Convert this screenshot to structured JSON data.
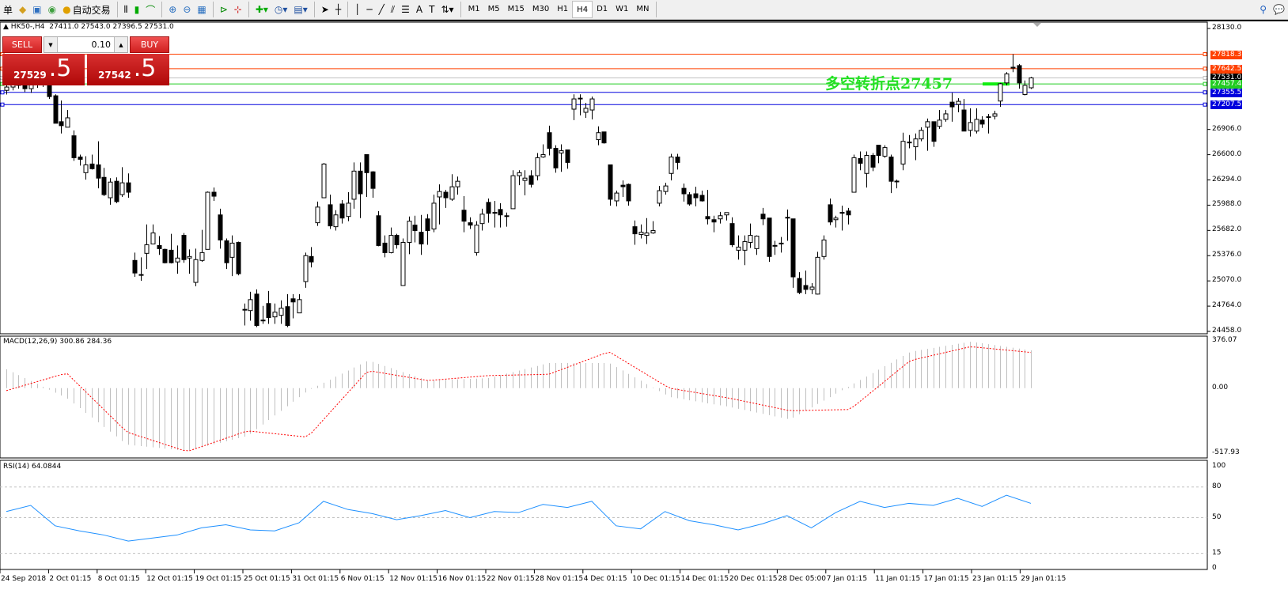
{
  "toolbar": {
    "menu_tail": "单",
    "autotrade": "自动交易",
    "timeframes": [
      "M1",
      "M5",
      "M15",
      "M30",
      "H1",
      "H4",
      "D1",
      "W1",
      "MN"
    ],
    "active_timeframe": "H4"
  },
  "header": {
    "symbol": "HK50-,H4",
    "open": "27411.0",
    "high": "27543.0",
    "low": "27396.5",
    "close": "27531.0"
  },
  "trade_panel": {
    "sell_label": "SELL",
    "buy_label": "BUY",
    "lot": "0.10",
    "sell_big": "27529",
    "sell_small": ".5",
    "buy_big": "27542",
    "buy_small": ".5"
  },
  "annotation": {
    "text": "多空转折点27457",
    "color": "#22e022"
  },
  "price_lines": [
    {
      "price": 27818.3,
      "label": "27818.3",
      "color": "#ff4000"
    },
    {
      "price": 27642.5,
      "label": "27642.5",
      "color": "#ff4000"
    },
    {
      "price": 27531.0,
      "label": "27531.0",
      "color": "#c0c0c0",
      "tag_color": "#000000"
    },
    {
      "price": 27457.4,
      "label": "27457.4",
      "color": "#22cc22"
    },
    {
      "price": 27355.5,
      "label": "27355.5",
      "color": "#0000dd"
    },
    {
      "price": 27207.5,
      "label": "27207.5",
      "color": "#0000dd"
    }
  ],
  "chart_data": [
    {
      "type": "candlestick",
      "title": "HK50-,H4",
      "ylim": [
        24458.0,
        28130.0
      ],
      "yticks": [
        "28130.0",
        "26906.0",
        "26600.0",
        "26294.0",
        "25988.0",
        "25682.0",
        "25376.0",
        "25070.0",
        "24764.0",
        "24458.0"
      ],
      "xticks": [
        "24 Sep 2018",
        "2 Oct 01:15",
        "8 Oct 01:15",
        "12 Oct 01:15",
        "19 Oct 01:15",
        "25 Oct 01:15",
        "31 Oct 01:15",
        "6 Nov 01:15",
        "12 Nov 01:15",
        "16 Nov 01:15",
        "22 Nov 01:15",
        "28 Nov 01:15",
        "4 Dec 01:15",
        "10 Dec 01:15",
        "14 Dec 01:15",
        "20 Dec 01:15",
        "28 Dec 05:00",
        "7 Jan 01:15",
        "11 Jan 01:15",
        "17 Jan 01:15",
        "23 Jan 01:15",
        "29 Jan 01:15"
      ],
      "ohlc": [
        [
          27380,
          27450,
          27330,
          27420
        ],
        [
          27420,
          27500,
          27380,
          27470
        ],
        [
          27470,
          27520,
          27400,
          27440
        ],
        [
          27440,
          27490,
          27360,
          27400
        ],
        [
          27400,
          27480,
          27350,
          27450
        ],
        [
          27450,
          27530,
          27410,
          27480
        ],
        [
          27480,
          27500,
          27420,
          27446
        ],
        [
          27446,
          27465,
          27275,
          27304
        ],
        [
          27314,
          27332,
          26981,
          26981
        ],
        [
          27000,
          27256,
          26857,
          26952
        ],
        [
          26933,
          27142,
          26933,
          27047
        ],
        [
          26829,
          26895,
          26525,
          26563
        ],
        [
          26572,
          26601,
          26468,
          26544
        ],
        [
          26382,
          26582,
          26297,
          26477
        ],
        [
          26487,
          26601,
          26420,
          26430
        ],
        [
          26477,
          26762,
          26192,
          26316
        ],
        [
          26325,
          26440,
          26097,
          26116
        ],
        [
          26078,
          26316,
          25993,
          26268
        ],
        [
          26278,
          26325,
          26012,
          26031
        ],
        [
          26116,
          26449,
          26088,
          26259
        ],
        [
          26259,
          26373,
          26078,
          26145
        ],
        [
          25318,
          25413,
          25119,
          25166
        ],
        [
          25147,
          25356,
          25071,
          25138
        ],
        [
          25404,
          25755,
          25214,
          25508
        ],
        [
          25518,
          25755,
          25518,
          25651
        ],
        [
          25499,
          25613,
          25385,
          25461
        ],
        [
          25452,
          25461,
          25281,
          25290
        ],
        [
          25442,
          25641,
          25281,
          25290
        ],
        [
          25300,
          25499,
          25157,
          25347
        ],
        [
          25622,
          25651,
          25290,
          25328
        ],
        [
          25347,
          25452,
          25157,
          25366
        ],
        [
          25052,
          25461,
          25005,
          25328
        ],
        [
          25318,
          25689,
          25300,
          25413
        ],
        [
          25452,
          26154,
          25452,
          26145
        ],
        [
          26145,
          26202,
          26040,
          26097
        ],
        [
          25870,
          25945,
          25461,
          25566
        ],
        [
          25556,
          25584,
          25214,
          25290
        ],
        [
          25356,
          25622,
          25128,
          25528
        ],
        [
          25537,
          25546,
          25138,
          25157
        ],
        [
          24725,
          24796,
          24530,
          24720
        ],
        [
          24710,
          24938,
          24587,
          24843
        ],
        [
          24910,
          24967,
          24510,
          24530
        ],
        [
          24595,
          24767,
          24549,
          24590
        ],
        [
          24796,
          24948,
          24549,
          24625
        ],
        [
          24634,
          24796,
          24549,
          24691
        ],
        [
          24653,
          24834,
          24549,
          24739
        ],
        [
          24758,
          24910,
          24510,
          24530
        ],
        [
          24853,
          24910,
          24616,
          24815
        ],
        [
          24682,
          24910,
          24682,
          24843
        ],
        [
          25062,
          25413,
          24986,
          25376
        ],
        [
          25366,
          25480,
          25233,
          25300
        ],
        [
          25775,
          26031,
          25737,
          25965
        ],
        [
          26078,
          26500,
          26078,
          26487
        ],
        [
          25993,
          26116,
          25699,
          25737
        ],
        [
          25727,
          25927,
          25680,
          25870
        ],
        [
          26002,
          26050,
          25765,
          25832
        ],
        [
          25851,
          26145,
          25794,
          26012
        ],
        [
          26060,
          26506,
          25945,
          26401
        ],
        [
          26401,
          26506,
          25832,
          26126
        ],
        [
          26601,
          26601,
          26088,
          26382
        ],
        [
          26392,
          26401,
          26078,
          26192
        ],
        [
          25860,
          25917,
          25490,
          25499
        ],
        [
          25528,
          25622,
          25356,
          25413
        ],
        [
          25413,
          25717,
          25404,
          25622
        ],
        [
          25622,
          25641,
          25461,
          25508
        ],
        [
          25014,
          25584,
          25014,
          25537
        ],
        [
          25537,
          25851,
          25394,
          25794
        ],
        [
          25746,
          25860,
          25537,
          25680
        ],
        [
          25660,
          25870,
          25385,
          25518
        ],
        [
          25822,
          25879,
          25508,
          25680
        ],
        [
          25699,
          26116,
          25660,
          26012
        ],
        [
          26088,
          26240,
          25755,
          26154
        ],
        [
          26145,
          26173,
          25955,
          26078
        ],
        [
          26060,
          26363,
          26040,
          26211
        ],
        [
          26211,
          26335,
          26116,
          26278
        ],
        [
          25927,
          26097,
          25660,
          25794
        ],
        [
          25775,
          25841,
          25699,
          25746
        ],
        [
          25413,
          25794,
          25376,
          25746
        ],
        [
          25765,
          25945,
          25680,
          25879
        ],
        [
          26022,
          26069,
          25775,
          25889
        ],
        [
          25900,
          26040,
          25717,
          25898
        ],
        [
          25936,
          26012,
          25717,
          25870
        ],
        [
          25851,
          25898,
          25727,
          25860
        ],
        [
          25945,
          26411,
          25945,
          26345
        ],
        [
          26345,
          26411,
          26231,
          26382
        ],
        [
          26288,
          26411,
          26107,
          26316
        ],
        [
          26345,
          26411,
          26202,
          26240
        ],
        [
          26345,
          26620,
          26288,
          26563
        ],
        [
          26572,
          26725,
          26563,
          26601
        ],
        [
          26867,
          26952,
          26591,
          26677
        ],
        [
          26677,
          26715,
          26382,
          26440
        ],
        [
          26620,
          26725,
          26392,
          26648
        ],
        [
          26658,
          26658,
          26430,
          26506
        ],
        [
          27152,
          27332,
          27019,
          27276
        ],
        [
          27276,
          27332,
          27076,
          27285
        ],
        [
          27114,
          27228,
          27047,
          27162
        ],
        [
          27142,
          27304,
          27028,
          27276
        ],
        [
          26782,
          26943,
          26715,
          26867
        ],
        [
          26876,
          26876,
          26734,
          26743
        ],
        [
          26477,
          26477,
          25983,
          26060
        ],
        [
          26040,
          26164,
          25974,
          26135
        ],
        [
          26230,
          26288,
          26088,
          26212
        ],
        [
          26240,
          26250,
          25983,
          26040
        ],
        [
          25727,
          25803,
          25508,
          25641
        ],
        [
          25632,
          25755,
          25584,
          25660
        ],
        [
          25622,
          25832,
          25518,
          25651
        ],
        [
          25651,
          25794,
          25641,
          25680
        ],
        [
          26012,
          26221,
          25974,
          26164
        ],
        [
          26154,
          26259,
          26116,
          26221
        ],
        [
          26373,
          26610,
          26288,
          26572
        ],
        [
          26572,
          26610,
          26420,
          26506
        ],
        [
          26192,
          26250,
          26031,
          26126
        ],
        [
          26116,
          26145,
          25983,
          26002
        ],
        [
          26126,
          26211,
          25974,
          26078
        ],
        [
          26107,
          26164,
          26031,
          26040
        ],
        [
          25850,
          26173,
          25755,
          25822
        ],
        [
          25812,
          25860,
          25660,
          25784
        ],
        [
          25822,
          25907,
          25765,
          25860
        ],
        [
          25870,
          25898,
          25803,
          25898
        ],
        [
          25765,
          25841,
          25480,
          25508
        ],
        [
          25442,
          25622,
          25328,
          25480
        ],
        [
          25442,
          25622,
          25261,
          25546
        ],
        [
          25537,
          25765,
          25470,
          25622
        ],
        [
          25461,
          25622,
          25385,
          25613
        ],
        [
          25879,
          25955,
          25746,
          25822
        ],
        [
          25832,
          25832,
          25300,
          25366
        ],
        [
          25500,
          25556,
          25385,
          25499
        ],
        [
          25518,
          25603,
          25413,
          25528
        ],
        [
          25832,
          25936,
          25556,
          25841
        ],
        [
          25822,
          25822,
          24986,
          25119
        ],
        [
          25100,
          25176,
          24910,
          24929
        ],
        [
          25014,
          25195,
          24910,
          24967
        ],
        [
          24967,
          25043,
          24910,
          24995
        ],
        [
          24910,
          25423,
          24905,
          25356
        ],
        [
          25366,
          25622,
          25328,
          25566
        ],
        [
          25993,
          26069,
          25746,
          25784
        ],
        [
          25812,
          25860,
          25717,
          25832
        ],
        [
          25900,
          25983,
          25680,
          25898
        ],
        [
          25917,
          25955,
          25755,
          25870
        ],
        [
          26145,
          26601,
          26145,
          26563
        ],
        [
          26553,
          26639,
          26411,
          26496
        ],
        [
          26373,
          26639,
          26202,
          26591
        ],
        [
          26591,
          26620,
          26401,
          26449
        ],
        [
          26715,
          26715,
          26496,
          26591
        ],
        [
          26582,
          26715,
          26563,
          26686
        ],
        [
          26572,
          26601,
          26135,
          26278
        ],
        [
          26280,
          26297,
          26192,
          26278
        ],
        [
          26487,
          26867,
          26411,
          26762
        ],
        [
          26753,
          26838,
          26677,
          26743
        ],
        [
          26696,
          26857,
          26534,
          26791
        ],
        [
          26791,
          26933,
          26762,
          26895
        ],
        [
          26933,
          27038,
          26648,
          27000
        ],
        [
          27000,
          27000,
          26696,
          26762
        ],
        [
          26943,
          27142,
          26914,
          27019
        ],
        [
          27028,
          27142,
          27000,
          27095
        ],
        [
          27237,
          27351,
          27000,
          27180
        ],
        [
          27209,
          27285,
          27114,
          27247
        ],
        [
          27142,
          27275,
          26886,
          26886
        ],
        [
          26895,
          27162,
          26820,
          26990
        ],
        [
          26886,
          27162,
          26857,
          27028
        ],
        [
          27019,
          27066,
          26924,
          26971
        ],
        [
          27060,
          27095,
          26857,
          27057
        ],
        [
          27066,
          27133,
          27028,
          27095
        ],
        [
          27250,
          27470,
          27180,
          27460
        ],
        [
          27470,
          27600,
          27440,
          27580
        ],
        [
          27650,
          27818,
          27600,
          27660
        ],
        [
          27680,
          27700,
          27400,
          27470
        ],
        [
          27330,
          27500,
          27320,
          27440
        ],
        [
          27411,
          27543,
          27396.5,
          27531
        ]
      ]
    },
    {
      "type": "bar+line",
      "title": "MACD(12,26,9)",
      "values_text": "300.86 284.36",
      "ylim": [
        -517.93,
        376.07
      ],
      "yticks": [
        "376.07",
        "0.00",
        "-517.93"
      ],
      "macd": [
        150,
        -80,
        -450,
        -500,
        -380,
        -20,
        220,
        60,
        80,
        200,
        200,
        -70,
        -150,
        -250,
        20,
        290,
        370,
        301
      ],
      "signal": [
        -20,
        120,
        -350,
        -505,
        -340,
        -390,
        140,
        60,
        100,
        110,
        290,
        0,
        -80,
        -180,
        -170,
        220,
        330,
        284
      ],
      "colors": {
        "histogram": "#c0c0c0",
        "signal": "#ff0000"
      }
    },
    {
      "type": "line",
      "title": "RSI(14)",
      "value_text": "64.0844",
      "ylim": [
        0,
        100
      ],
      "yticks": [
        "100",
        "80",
        "50",
        "15",
        "0"
      ],
      "levels": [
        80,
        50,
        15
      ],
      "values": [
        56,
        62,
        42,
        37,
        33,
        27,
        30,
        33,
        40,
        43,
        38,
        37,
        45,
        66,
        58,
        54,
        48,
        52,
        57,
        50,
        56,
        55,
        63,
        60,
        66,
        42,
        39,
        56,
        47,
        43,
        38,
        44,
        52,
        40,
        55,
        66,
        60,
        64,
        62,
        69,
        61,
        72,
        64
      ],
      "color": "#1e90ff"
    }
  ]
}
